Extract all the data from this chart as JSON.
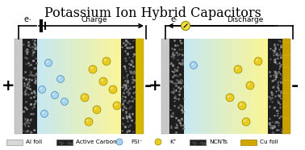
{
  "title": "Potassium Ion Hybrid Capacitors",
  "title_fontsize": 11.5,
  "charge_label": "Charge",
  "discharge_label": "Discharge",
  "bg_color": "#ffffff",
  "legend_labels": [
    "Al foil",
    "Active Carbon",
    "FSI⁻",
    "K⁺",
    "NCNTs",
    "Cu foil"
  ]
}
